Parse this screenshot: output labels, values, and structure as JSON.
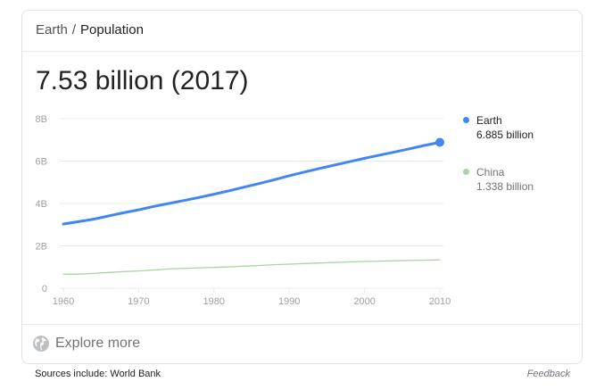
{
  "breadcrumb": {
    "parent": "Earth",
    "separator": "/",
    "current": "Population"
  },
  "headline": "7.53 billion (2017)",
  "footer": {
    "explore_label": "Explore more",
    "sources": "Sources include: World Bank",
    "feedback": "Feedback"
  },
  "colors": {
    "earth": "#4285f4",
    "china": "#a8d5a2",
    "grid": "#e8e8e8",
    "tick_text": "#9aa0a6"
  },
  "icons": {
    "explore": "globe-icon",
    "endpoint": "dot-marker"
  },
  "chart_data": {
    "type": "line",
    "title": "",
    "xlabel": "",
    "ylabel": "",
    "xlim": [
      1960,
      2010
    ],
    "ylim": [
      0,
      8
    ],
    "x_ticks": [
      {
        "value": 1960,
        "label": "1960"
      },
      {
        "value": 1970,
        "label": "1970"
      },
      {
        "value": 1980,
        "label": "1980"
      },
      {
        "value": 1990,
        "label": "1990"
      },
      {
        "value": 2000,
        "label": "2000"
      },
      {
        "value": 2010,
        "label": "2010"
      }
    ],
    "y_ticks": [
      {
        "value": 0,
        "label": "0"
      },
      {
        "value": 2,
        "label": "2B"
      },
      {
        "value": 4,
        "label": "4B"
      },
      {
        "value": 6,
        "label": "6B"
      },
      {
        "value": 8,
        "label": "8B"
      }
    ],
    "grid": true,
    "legend_position": "right",
    "x": [
      1960,
      1962,
      1964,
      1966,
      1968,
      1970,
      1972,
      1974,
      1976,
      1978,
      1980,
      1982,
      1984,
      1986,
      1988,
      1990,
      1992,
      1994,
      1996,
      1998,
      2000,
      2002,
      2004,
      2006,
      2008,
      2010
    ],
    "series": [
      {
        "name": "Earth",
        "value_label": "6.885 billion",
        "color": "#4285f4",
        "values": [
          3.03,
          3.14,
          3.26,
          3.41,
          3.56,
          3.7,
          3.86,
          4.0,
          4.14,
          4.28,
          4.44,
          4.6,
          4.77,
          4.94,
          5.12,
          5.31,
          5.48,
          5.65,
          5.81,
          5.97,
          6.13,
          6.28,
          6.43,
          6.58,
          6.74,
          6.885
        ]
      },
      {
        "name": "China",
        "value_label": "1.338 billion",
        "color": "#a8d5a2",
        "values": [
          0.667,
          0.666,
          0.698,
          0.745,
          0.786,
          0.818,
          0.862,
          0.909,
          0.937,
          0.963,
          0.981,
          1.009,
          1.044,
          1.075,
          1.11,
          1.135,
          1.165,
          1.192,
          1.218,
          1.241,
          1.263,
          1.28,
          1.296,
          1.311,
          1.325,
          1.338
        ]
      }
    ]
  }
}
